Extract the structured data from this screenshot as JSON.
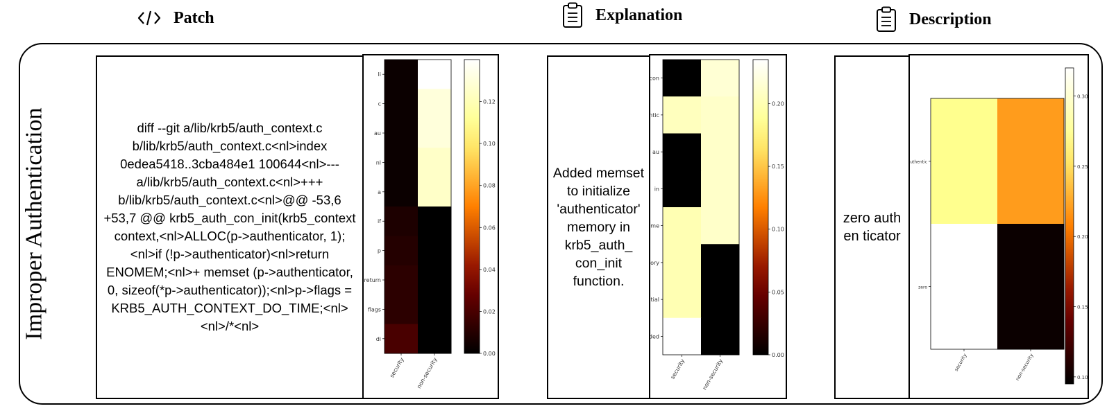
{
  "headers": {
    "patch": "Patch",
    "explanation": "Explanation",
    "description": "Description"
  },
  "icons": {
    "patch": "code-icon",
    "explanation": "clipboard-icon",
    "description": "clipboard-icon"
  },
  "row_label": "Improper Authentication",
  "patch_text": "diff --git a/lib/krb5/auth_context.c b/lib/krb5/auth_context.c<nl>index 0edea5418..3cba484e1 100644<nl>--- a/lib/krb5/auth_context.c<nl>+++ b/lib/krb5/auth_context.c<nl>@@ -53,6 +53,7 @@ krb5_auth_con_init(krb5_context context,<nl>ALLOC(p->authenticator, 1);<nl>if (!p->authenticator)<nl>return ENOMEM;<nl>+    memset (p->authenticator, 0, sizeof(*p->authenticator));<nl>p->flags = KRB5_AUTH_CONTEXT_DO_TIME;<nl><nl>/*<nl>",
  "explanation_text": "Added memset to initialize 'authenticator' memory in krb5_auth_ con_init function.",
  "description_text": "zero authen ticator",
  "chart_data": [
    {
      "type": "heatmap",
      "name": "patch-heatmap",
      "rows": [
        "li",
        "c",
        "au",
        "nl",
        "a",
        "if",
        "p",
        "return",
        "flags",
        "di"
      ],
      "columns": [
        "security",
        "non-security"
      ],
      "values": [
        [
          0.003,
          0.14
        ],
        [
          0.003,
          0.13
        ],
        [
          0.003,
          0.13
        ],
        [
          0.003,
          0.125
        ],
        [
          0.003,
          0.125
        ],
        [
          0.008,
          0.0
        ],
        [
          0.01,
          0.0
        ],
        [
          0.012,
          0.0
        ],
        [
          0.012,
          0.0
        ],
        [
          0.02,
          0.0
        ]
      ],
      "colorbar": {
        "min": 0.0,
        "max": 0.14,
        "ticks": [
          "0.00",
          "0.02",
          "0.04",
          "0.06",
          "0.08",
          "0.10",
          "0.12"
        ]
      },
      "colormap": "afmhot"
    },
    {
      "type": "heatmap",
      "name": "explanation-heatmap",
      "rows": [
        "con",
        "authentic",
        "au",
        "in",
        "me",
        "memory",
        "initial",
        "added"
      ],
      "columns": [
        "security",
        "non-security"
      ],
      "values": [
        [
          0.0,
          0.215
        ],
        [
          0.205,
          0.21
        ],
        [
          0.0,
          0.21
        ],
        [
          0.0,
          0.21
        ],
        [
          0.2,
          0.21
        ],
        [
          0.2,
          0.0
        ],
        [
          0.2,
          0.0
        ],
        [
          0.235,
          0.0
        ]
      ],
      "colorbar": {
        "min": 0.0,
        "max": 0.235,
        "ticks": [
          "0.00",
          "0.05",
          "0.10",
          "0.15",
          "0.20"
        ]
      },
      "colormap": "afmhot"
    },
    {
      "type": "heatmap",
      "name": "description-heatmap",
      "rows": [
        "authentic",
        "zero"
      ],
      "columns": [
        "security",
        "non-security"
      ],
      "values": [
        [
          0.27,
          0.22
        ],
        [
          0.32,
          0.1
        ]
      ],
      "colorbar": {
        "min": 0.095,
        "max": 0.32,
        "ticks": [
          "0.10",
          "0.15",
          "0.20",
          "0.25",
          "0.30"
        ]
      },
      "colormap": "afmhot"
    }
  ]
}
